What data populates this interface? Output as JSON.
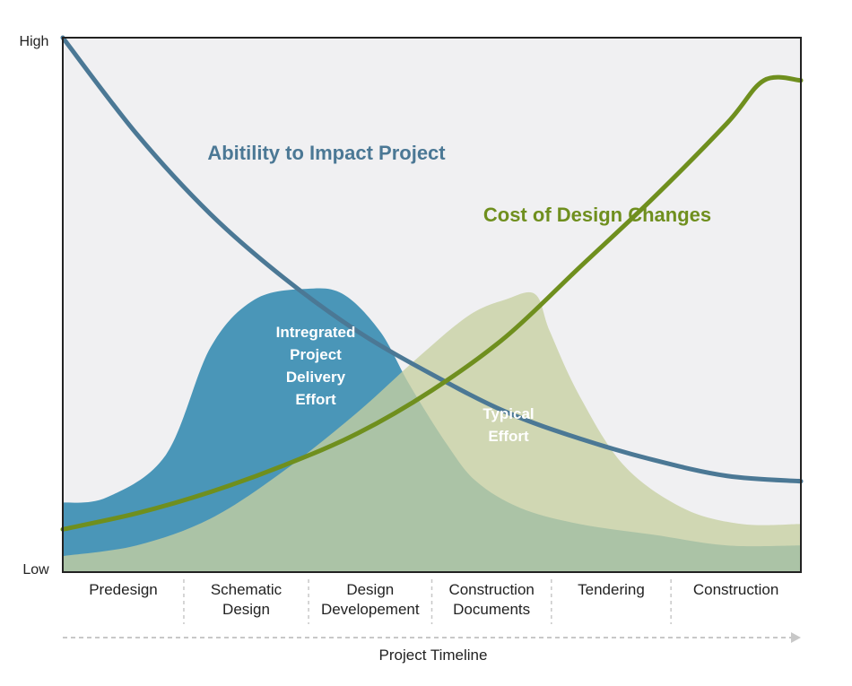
{
  "chart_data": {
    "type": "area",
    "title": "",
    "xlabel": "Project Timeline",
    "ylabel": "",
    "y_tick_labels": {
      "high": "High",
      "low": "Low"
    },
    "ylim": [
      0,
      100
    ],
    "xlim": [
      0,
      100
    ],
    "phases": [
      {
        "lines": [
          "Predesign"
        ],
        "end": 16.4
      },
      {
        "lines": [
          "Schematic",
          "Design"
        ],
        "end": 33.3
      },
      {
        "lines": [
          "Design",
          "Developement"
        ],
        "end": 50.0
      },
      {
        "lines": [
          "Construction",
          "Documents"
        ],
        "end": 66.2
      },
      {
        "lines": [
          "Tendering"
        ],
        "end": 82.4
      },
      {
        "lines": [
          "Construction"
        ],
        "end": 100
      }
    ],
    "colors": {
      "plot_bg": "#f0f0f2",
      "impact": "#4b7895",
      "cost": "#6f8f1e",
      "ipd": "#4a96b8",
      "typical": "#c7cfa2"
    },
    "series": [
      {
        "name": "Abitility to Impact Project",
        "kind": "line",
        "color": "#4b7895",
        "x": [
          0,
          10,
          20,
          30,
          40,
          50,
          60,
          70,
          80,
          90,
          100
        ],
        "y": [
          100,
          82,
          67,
          55,
          45,
          37,
          30,
          25,
          21,
          18,
          17
        ]
      },
      {
        "name": "Cost of Design Changes",
        "kind": "line",
        "color": "#6f8f1e",
        "x": [
          0,
          10,
          20,
          30,
          40,
          50,
          60,
          70,
          80,
          90,
          95,
          100
        ],
        "y": [
          8,
          11,
          15,
          20,
          26,
          34,
          44,
          57,
          70,
          84,
          92,
          92
        ]
      },
      {
        "name": "Intregrated Project Delivery Effort",
        "label_lines": [
          "Intregrated",
          "Project",
          "Delivery",
          "Effort"
        ],
        "kind": "area",
        "color": "#4a96b8",
        "x": [
          0,
          6,
          14,
          20,
          26,
          33,
          38,
          43,
          47,
          52,
          56,
          62,
          70,
          80,
          90,
          100
        ],
        "y": [
          13,
          14,
          22,
          42,
          51,
          53,
          52,
          45,
          35,
          24,
          17,
          12,
          9,
          7,
          5,
          5
        ]
      },
      {
        "name": "Typical Effort",
        "label_lines": [
          "Typical",
          "Effort"
        ],
        "kind": "area",
        "color": "#c7cfa2",
        "x": [
          0,
          10,
          20,
          30,
          40,
          48,
          55,
          60,
          64,
          66,
          70,
          76,
          84,
          92,
          100
        ],
        "y": [
          3,
          5,
          10,
          19,
          30,
          40,
          48,
          51,
          52,
          45,
          33,
          20,
          12,
          9,
          9
        ]
      }
    ]
  }
}
